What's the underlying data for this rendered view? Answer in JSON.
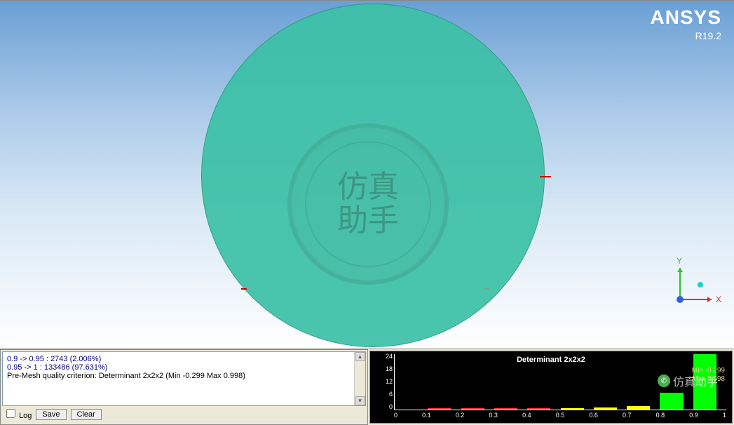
{
  "brand": {
    "name": "ANSYS",
    "version": "R19.2"
  },
  "watermark": {
    "text": "仿真\n助手"
  },
  "triad": {
    "x_label": "X",
    "y_label": "Y",
    "x_color": "#e03030",
    "y_color": "#30c030",
    "z_color": "#3060e0"
  },
  "messages": {
    "line1": "0.9 -> 0.95 : 2743 (2.006%)",
    "line2": "0.95 -> 1 : 133486 (97.631%)",
    "line3": "Pre-Mesh quality criterion: Determinant 2x2x2 (Min -0.299 Max 0.998)",
    "log_label": "Log",
    "save_label": "Save",
    "clear_label": "Clear"
  },
  "histogram": {
    "title": "Determinant 2x2x2",
    "y_ticks": [
      "24",
      "18",
      "12",
      "6",
      "0"
    ],
    "x_ticks": [
      "0",
      "0.1",
      "0.2",
      "0.3",
      "0.4",
      "0.5",
      "0.6",
      "0.7",
      "0.8",
      "0.9",
      "1"
    ],
    "min_label": "Min -0.299",
    "max_label": "Max 0.998",
    "bars": [
      {
        "pos": 0,
        "h": 0,
        "color": "bar-red"
      },
      {
        "pos": 1,
        "h": 3,
        "color": "bar-red"
      },
      {
        "pos": 2,
        "h": 3,
        "color": "bar-red"
      },
      {
        "pos": 3,
        "h": 2,
        "color": "bar-red"
      },
      {
        "pos": 4,
        "h": 2,
        "color": "bar-red"
      },
      {
        "pos": 5,
        "h": 2,
        "color": "bar-yellow"
      },
      {
        "pos": 6,
        "h": 4,
        "color": "bar-yellow"
      },
      {
        "pos": 7,
        "h": 6,
        "color": "bar-yellow"
      },
      {
        "pos": 8,
        "h": 30,
        "color": "bar-green"
      },
      {
        "pos": 9,
        "h": 100,
        "color": "bar-green"
      }
    ],
    "y_max": 24,
    "bg": "#000000"
  },
  "small_watermark": "仿真助手",
  "colors": {
    "mesh": "#3cc1a7",
    "sky_top": "#6a9fd4",
    "sky_bottom": "#ffffff"
  }
}
